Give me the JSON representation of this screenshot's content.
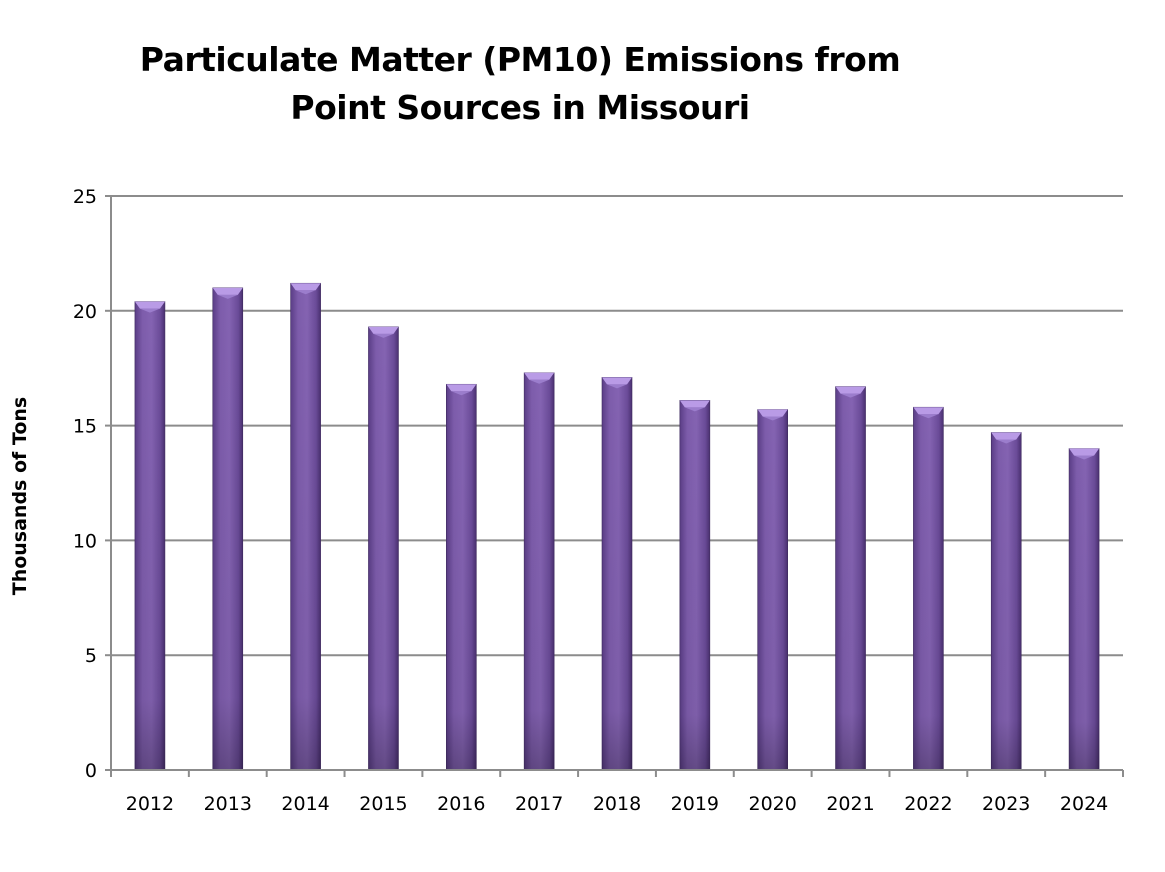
{
  "chart_data": {
    "type": "bar",
    "title": "Particulate Matter (PM10) Emissions from Point Sources in Missouri",
    "title_lines": [
      "Particulate Matter (PM10) Emissions from",
      "Point Sources in Missouri"
    ],
    "xlabel": "",
    "ylabel": "Thousands of Tons",
    "categories": [
      "2012",
      "2013",
      "2014",
      "2015",
      "2016",
      "2017",
      "2018",
      "2019",
      "2020",
      "2021",
      "2022",
      "2023",
      "2024"
    ],
    "values": [
      20.4,
      21.0,
      21.2,
      19.3,
      16.8,
      17.3,
      17.1,
      16.1,
      15.7,
      16.7,
      15.8,
      14.7,
      14.0
    ],
    "ylim": [
      0,
      25
    ],
    "yticks": [
      0,
      5,
      10,
      15,
      20,
      25
    ],
    "grid": true,
    "legend": "none",
    "colors": {
      "bar": "#7b5ba8",
      "bar_dark": "#4e3476",
      "bar_top": "#b99be6",
      "grid": "#8c8c8c"
    }
  }
}
